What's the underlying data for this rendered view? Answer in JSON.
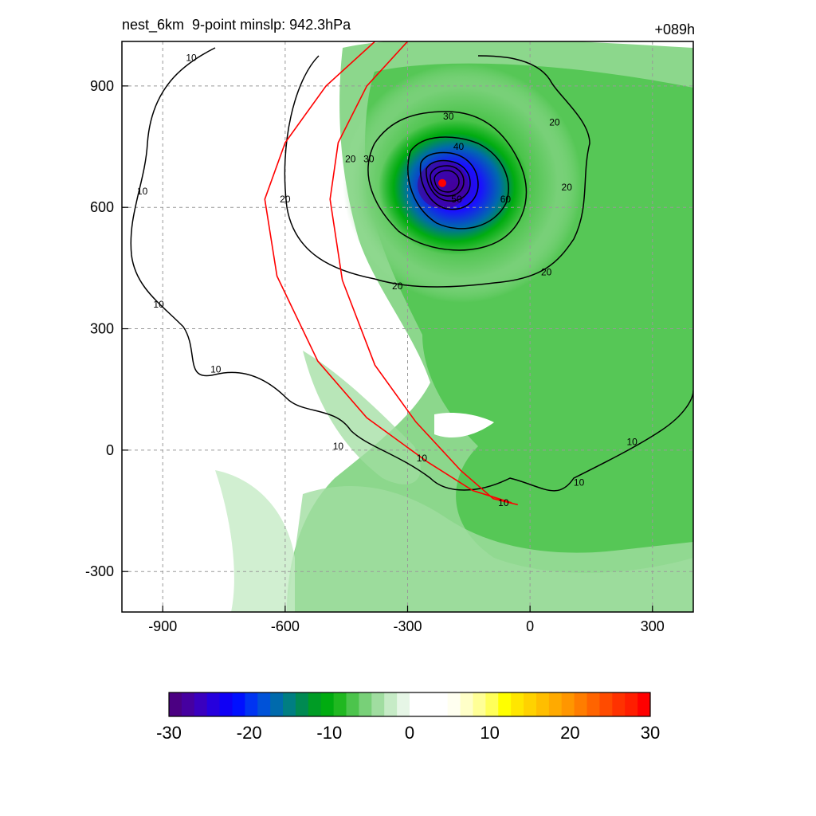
{
  "header": {
    "title": "nest_6km  9-point minslp: 942.3hPa",
    "time_label": "+089h"
  },
  "chart_data": {
    "type": "heatmap",
    "title": "nest_6km  9-point minslp: 942.3hPa",
    "time_label": "+089h",
    "xlim": [
      -1000,
      400
    ],
    "ylim": [
      -400,
      1010
    ],
    "xticks": [
      -900,
      -600,
      -300,
      0,
      300
    ],
    "yticks": [
      900,
      600,
      300,
      0,
      -300
    ],
    "grid": true,
    "colorbar": {
      "min": -30,
      "max": 30,
      "ticks": [
        -30,
        -20,
        -10,
        0,
        10,
        20,
        30
      ],
      "colors": [
        "#4b0082",
        "#4600a0",
        "#3a00bf",
        "#2600dd",
        "#0f00f5",
        "#0010ff",
        "#0034f2",
        "#0052d8",
        "#006aac",
        "#007e82",
        "#008a52",
        "#009c25",
        "#00ac10",
        "#20b820",
        "#4cc44c",
        "#78d078",
        "#a0dda0",
        "#c6ebc6",
        "#e6f6e6",
        "#ffffff",
        "#ffffff",
        "#ffffff",
        "#fffff0",
        "#ffffc8",
        "#ffff96",
        "#ffff5a",
        "#ffff00",
        "#ffe600",
        "#ffd200",
        "#ffbe00",
        "#ffaa00",
        "#ff9600",
        "#ff7d00",
        "#ff6400",
        "#ff4b00",
        "#ff3200",
        "#ff1e00",
        "#ff0000"
      ]
    },
    "contour_labels": [
      {
        "text": "10",
        "x": -830,
        "y": 970
      },
      {
        "text": "10",
        "x": -950,
        "y": 640
      },
      {
        "text": "10",
        "x": -910,
        "y": 360
      },
      {
        "text": "10",
        "x": -770,
        "y": 200
      },
      {
        "text": "10",
        "x": -470,
        "y": 10
      },
      {
        "text": "10",
        "x": -265,
        "y": -20
      },
      {
        "text": "10",
        "x": -65,
        "y": -130
      },
      {
        "text": "10",
        "x": 120,
        "y": -80
      },
      {
        "text": "10",
        "x": 250,
        "y": 20
      },
      {
        "text": "20",
        "x": -600,
        "y": 620
      },
      {
        "text": "20",
        "x": -325,
        "y": 405
      },
      {
        "text": "20",
        "x": -440,
        "y": 720
      },
      {
        "text": "20",
        "x": 60,
        "y": 810
      },
      {
        "text": "20",
        "x": 90,
        "y": 650
      },
      {
        "text": "20",
        "x": 40,
        "y": 440
      },
      {
        "text": "30",
        "x": -200,
        "y": 825
      },
      {
        "text": "30",
        "x": -395,
        "y": 720
      },
      {
        "text": "40",
        "x": -175,
        "y": 750
      },
      {
        "text": "50",
        "x": -180,
        "y": 620
      },
      {
        "text": "60",
        "x": -60,
        "y": 620
      }
    ],
    "storm_center": {
      "x": -215,
      "y": 660
    },
    "tracks": [
      {
        "color": "#ff0000",
        "points": [
          [
            -300,
            1010
          ],
          [
            -400,
            900
          ],
          [
            -470,
            760
          ],
          [
            -490,
            620
          ],
          [
            -460,
            420
          ],
          [
            -380,
            210
          ],
          [
            -280,
            70
          ],
          [
            -170,
            -50
          ],
          [
            -90,
            -120
          ],
          [
            -30,
            -135
          ]
        ]
      },
      {
        "color": "#ff0000",
        "points": [
          [
            -380,
            1010
          ],
          [
            -500,
            900
          ],
          [
            -600,
            760
          ],
          [
            -650,
            620
          ],
          [
            -620,
            430
          ],
          [
            -520,
            220
          ],
          [
            -400,
            80
          ],
          [
            -250,
            -30
          ],
          [
            -140,
            -100
          ],
          [
            -45,
            -130
          ]
        ]
      }
    ]
  }
}
